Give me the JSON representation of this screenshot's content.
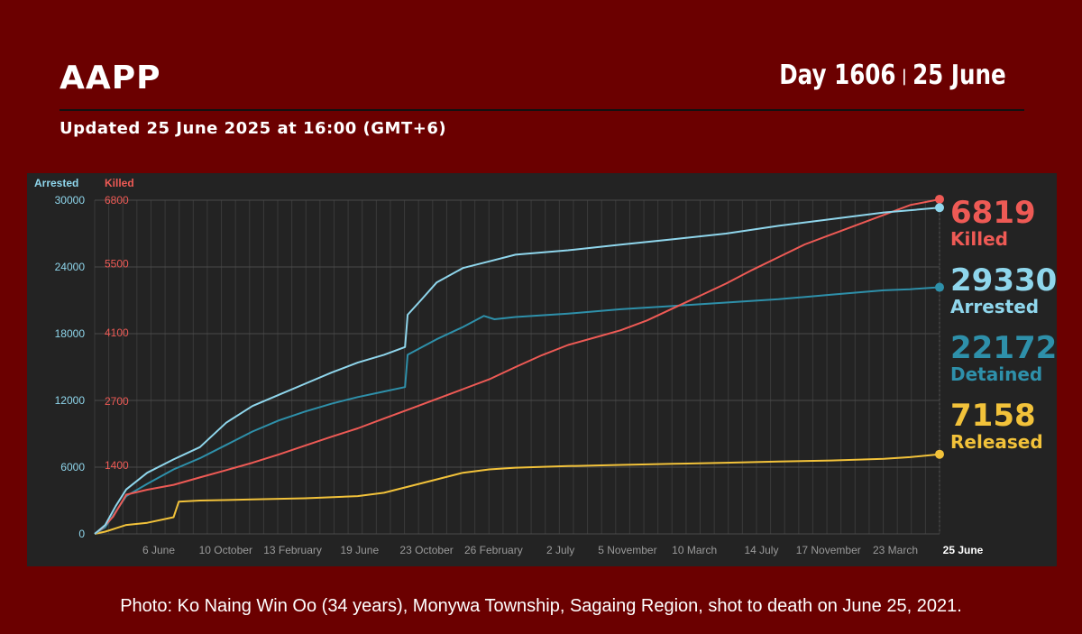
{
  "header": {
    "title": "AAPP",
    "day_label": "Day 1606",
    "date_label": "25 June",
    "separator": "|",
    "updated": "Updated 25 June 2025 at 16:00 (GMT+6)"
  },
  "caption": "Photo: Ko Naing Win Oo (34 years), Monywa Township, Sagaing Region, shot to death on June 25, 2021.",
  "colors": {
    "background": "#6b0000",
    "panel": "#232323",
    "killed": "#ee5a55",
    "arrested": "#8fd6ec",
    "detained": "#2e90aa",
    "released": "#f2c23a"
  },
  "chart_data": {
    "type": "line",
    "axes": {
      "left_arrested": {
        "label": "Arrested",
        "ticks": [
          0,
          6000,
          12000,
          18000,
          24000,
          30000
        ],
        "ylim": [
          0,
          30000
        ]
      },
      "right_killed": {
        "label": "Killed",
        "ticks": [
          1400,
          2700,
          4100,
          5500,
          6800
        ],
        "ylim": [
          0,
          6800
        ]
      }
    },
    "x_tick_labels": [
      "6 June",
      "10 October",
      "13 February",
      "19 June",
      "23 October",
      "26 February",
      "2 July",
      "5 November",
      "10 March",
      "14 July",
      "17 November",
      "23 March",
      "25 June"
    ],
    "x_end_label": "25 June",
    "grid": true,
    "series": [
      {
        "name": "Killed",
        "key": "killed",
        "axis": "right_killed",
        "total": "6819",
        "x": [
          0,
          15,
          35,
          60,
          100,
          150,
          200,
          250,
          300,
          350,
          400,
          450,
          500,
          550,
          600,
          650,
          700,
          750,
          800,
          850,
          900,
          950,
          1000,
          1050,
          1100,
          1150,
          1200,
          1250,
          1300,
          1350,
          1400,
          1450,
          1500,
          1550,
          1606
        ],
        "y": [
          0,
          120,
          350,
          800,
          900,
          1000,
          1150,
          1300,
          1450,
          1620,
          1800,
          1980,
          2150,
          2350,
          2550,
          2750,
          2950,
          3150,
          3400,
          3640,
          3850,
          4000,
          4150,
          4350,
          4600,
          4850,
          5100,
          5380,
          5640,
          5900,
          6100,
          6300,
          6500,
          6700,
          6819
        ]
      },
      {
        "name": "Arrested",
        "key": "arrested",
        "axis": "left_arrested",
        "total": "29330",
        "x": [
          0,
          20,
          40,
          60,
          100,
          150,
          200,
          250,
          300,
          350,
          400,
          450,
          500,
          550,
          590,
          595,
          620,
          650,
          700,
          750,
          800,
          900,
          1000,
          1100,
          1200,
          1300,
          1400,
          1500,
          1606
        ],
        "y": [
          0,
          800,
          2500,
          4000,
          5500,
          6700,
          7800,
          10000,
          11500,
          12500,
          13500,
          14500,
          15400,
          16100,
          16800,
          19700,
          21000,
          22600,
          23900,
          24500,
          25100,
          25500,
          26000,
          26500,
          27000,
          27700,
          28300,
          28900,
          29330
        ]
      },
      {
        "name": "Detained",
        "key": "detained",
        "axis": "left_arrested",
        "total": "22172",
        "x": [
          0,
          20,
          40,
          60,
          100,
          150,
          200,
          250,
          300,
          350,
          400,
          450,
          500,
          550,
          590,
          595,
          650,
          700,
          740,
          760,
          800,
          900,
          1000,
          1100,
          1200,
          1300,
          1400,
          1500,
          1550,
          1606
        ],
        "y": [
          0,
          600,
          2000,
          3400,
          4500,
          5800,
          6800,
          8000,
          9200,
          10200,
          11000,
          11700,
          12300,
          12800,
          13200,
          16100,
          17500,
          18600,
          19600,
          19300,
          19500,
          19800,
          20200,
          20500,
          20800,
          21100,
          21500,
          21900,
          22000,
          22172
        ]
      },
      {
        "name": "Released",
        "key": "released",
        "axis": "left_arrested",
        "total": "7158",
        "x": [
          0,
          20,
          40,
          60,
          100,
          150,
          160,
          200,
          300,
          400,
          500,
          550,
          600,
          650,
          700,
          750,
          800,
          900,
          1000,
          1100,
          1200,
          1300,
          1400,
          1500,
          1550,
          1606
        ],
        "y": [
          0,
          200,
          500,
          800,
          1000,
          1500,
          2900,
          3000,
          3100,
          3200,
          3400,
          3700,
          4300,
          4900,
          5500,
          5800,
          5950,
          6100,
          6200,
          6300,
          6400,
          6500,
          6600,
          6750,
          6900,
          7158
        ]
      }
    ],
    "legend": {
      "placement": "right"
    }
  }
}
